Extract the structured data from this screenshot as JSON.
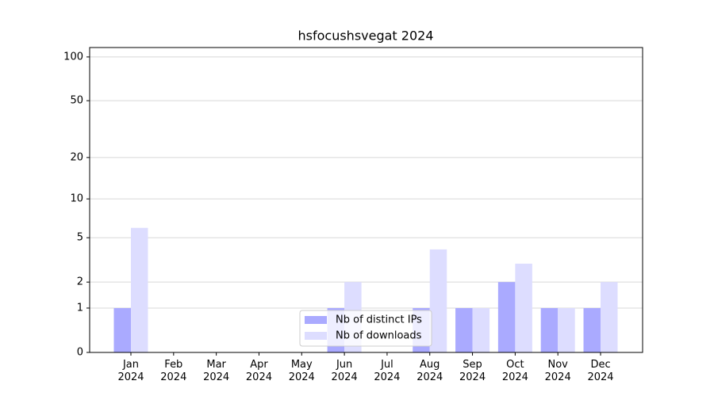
{
  "chart_data": {
    "type": "bar",
    "title": "hsfocushsvegat 2024",
    "categories": [
      "Jan\n2024",
      "Feb\n2024",
      "Mar\n2024",
      "Apr\n2024",
      "May\n2024",
      "Jun\n2024",
      "Jul\n2024",
      "Aug\n2024",
      "Sep\n2024",
      "Oct\n2024",
      "Nov\n2024",
      "Dec\n2024"
    ],
    "series": [
      {
        "name": "Nb of distinct IPs",
        "color": "#aaaaff",
        "values": [
          1,
          0,
          0,
          0,
          0,
          1,
          0,
          1,
          1,
          2,
          1,
          1
        ]
      },
      {
        "name": "Nb of downloads",
        "color": "#ddddff",
        "values": [
          6,
          0,
          0,
          0,
          0,
          2,
          0,
          4,
          1,
          3,
          1,
          2
        ]
      }
    ],
    "yscale": "log1p",
    "ylim": [
      0,
      116
    ],
    "yticks": [
      0,
      1,
      2,
      5,
      10,
      20,
      50,
      100
    ],
    "grid": true,
    "legend": "lower center"
  }
}
